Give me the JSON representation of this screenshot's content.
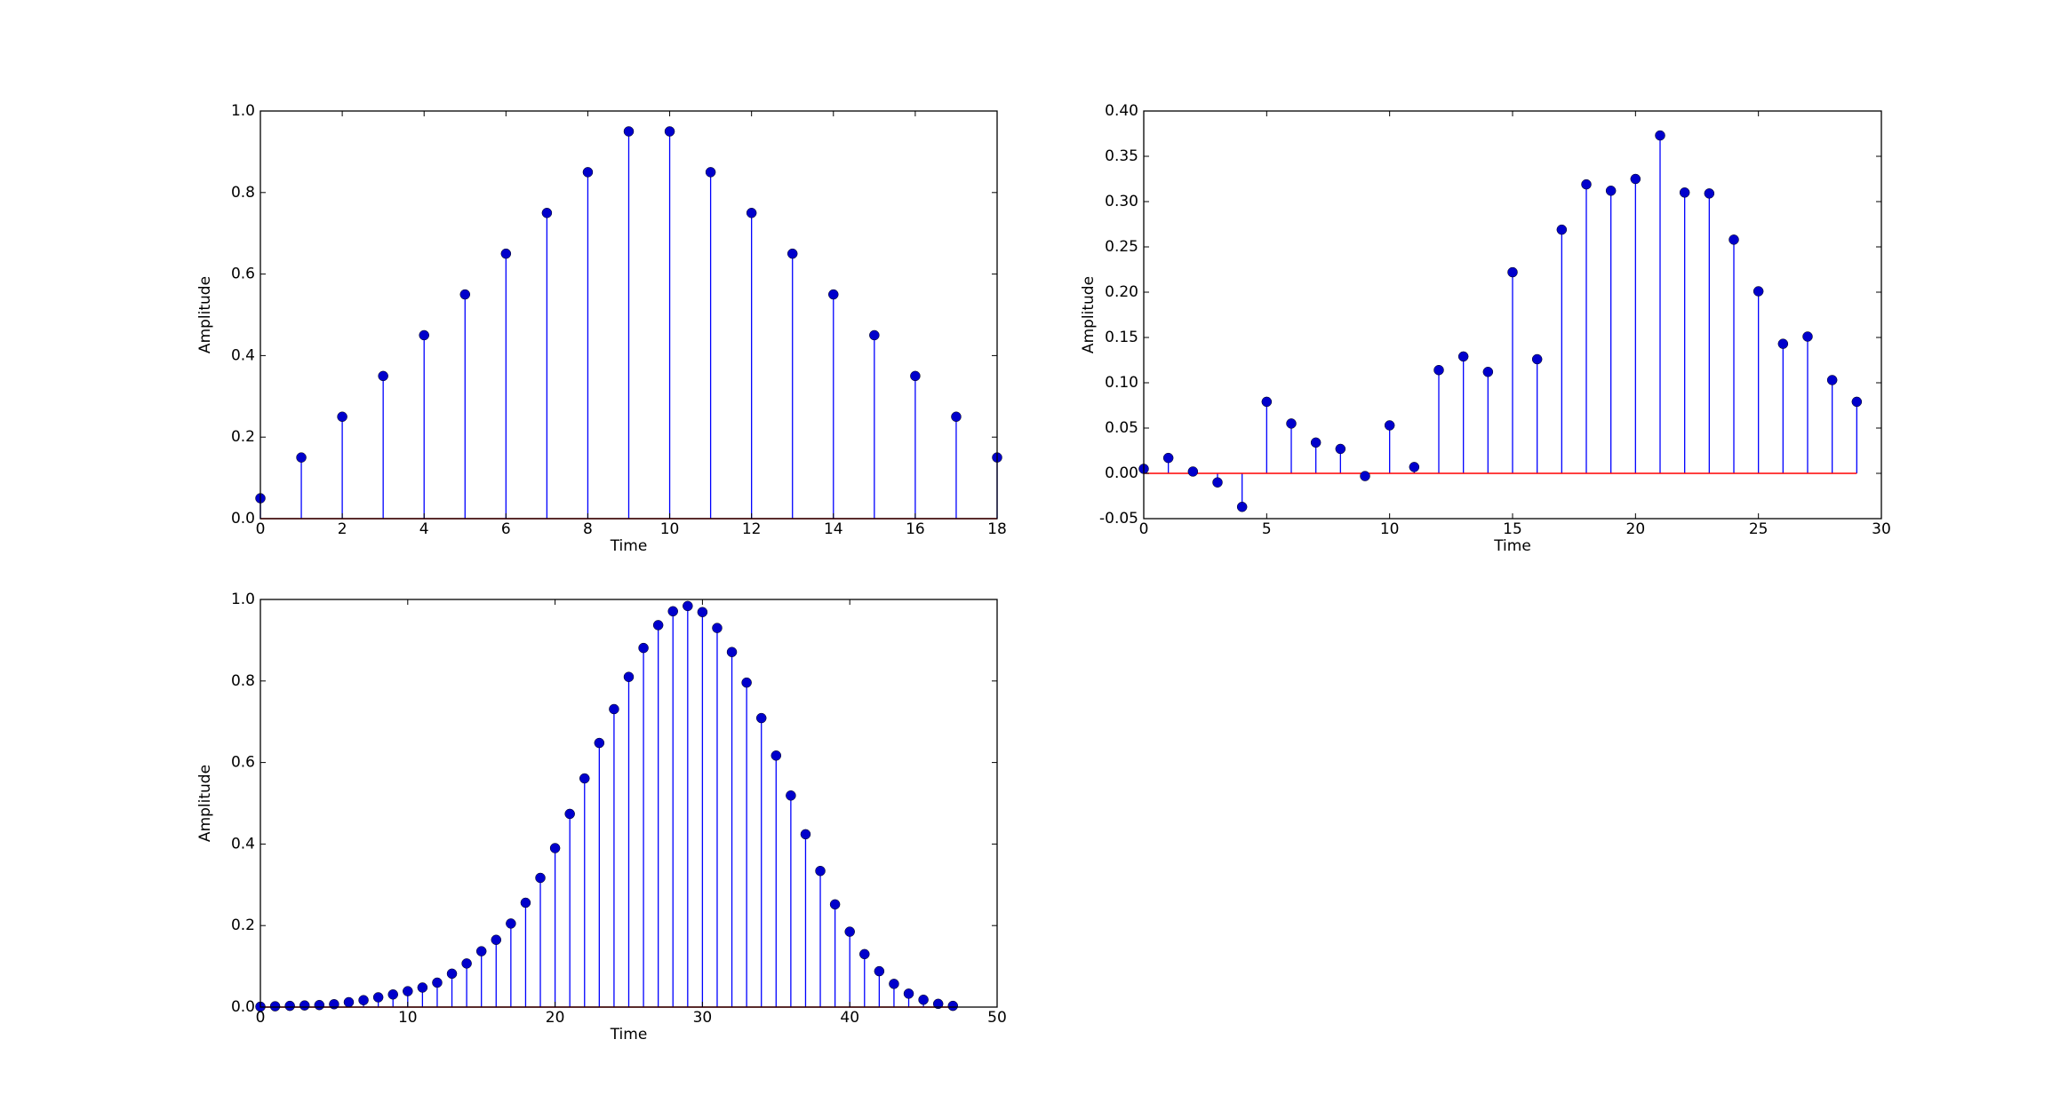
{
  "chart_data": [
    {
      "type": "stem",
      "xlabel": "Time",
      "ylabel": "Amplitude",
      "color": "#0000ff",
      "marker_color": "#0000cc",
      "baseline_color": "#ff0000",
      "x": [
        0,
        1,
        2,
        3,
        4,
        5,
        6,
        7,
        8,
        9,
        10,
        11,
        12,
        13,
        14,
        15,
        16,
        17,
        18
      ],
      "values": [
        0.05,
        0.15,
        0.25,
        0.35,
        0.45,
        0.55,
        0.65,
        0.75,
        0.85,
        0.95,
        0.95,
        0.85,
        0.75,
        0.65,
        0.55,
        0.45,
        0.35,
        0.25,
        0.15
      ],
      "xlim": [
        0,
        18
      ],
      "xticks": [
        0,
        2,
        4,
        6,
        8,
        10,
        12,
        14,
        16,
        18
      ],
      "ylim": [
        0,
        1
      ],
      "yticks": [
        {
          "value": 0,
          "label": "0.0"
        },
        0.2,
        0.4,
        0.6,
        0.8,
        {
          "value": 1,
          "label": "1.0"
        }
      ]
    },
    {
      "type": "stem",
      "xlabel": "Time",
      "ylabel": "Amplitude",
      "color": "#0000ff",
      "marker_color": "#0000cc",
      "baseline_color": "#ff0000",
      "x": [
        0,
        1,
        2,
        3,
        4,
        5,
        6,
        7,
        8,
        9,
        10,
        11,
        12,
        13,
        14,
        15,
        16,
        17,
        18,
        19,
        20,
        21,
        22,
        23,
        24,
        25,
        26,
        27,
        28,
        29
      ],
      "values": [
        0.005,
        0.017,
        0.002,
        -0.01,
        -0.037,
        0.079,
        0.055,
        0.034,
        0.027,
        -0.003,
        0.053,
        0.007,
        0.114,
        0.129,
        0.112,
        0.222,
        0.126,
        0.269,
        0.319,
        0.312,
        0.325,
        0.373,
        0.31,
        0.309,
        0.258,
        0.201,
        0.143,
        0.151,
        0.103,
        0.079
      ],
      "xlim": [
        0,
        30
      ],
      "xticks": [
        0,
        5,
        10,
        15,
        20,
        25,
        30
      ],
      "ylim": [
        -0.05,
        0.4
      ],
      "yticks": [
        -0.05,
        {
          "value": 0,
          "label": "0.00"
        },
        0.05,
        {
          "value": 0.1,
          "label": "0.10"
        },
        0.15,
        {
          "value": 0.2,
          "label": "0.20"
        },
        0.25,
        {
          "value": 0.3,
          "label": "0.30"
        },
        0.35,
        {
          "value": 0.4,
          "label": "0.40"
        }
      ]
    },
    {
      "type": "stem",
      "xlabel": "Time",
      "ylabel": "Amplitude",
      "color": "#0000ff",
      "marker_color": "#0000cc",
      "baseline_color": "#ff0000",
      "x": [
        0,
        1,
        2,
        3,
        4,
        5,
        6,
        7,
        8,
        9,
        10,
        11,
        12,
        13,
        14,
        15,
        16,
        17,
        18,
        19,
        20,
        21,
        22,
        23,
        24,
        25,
        26,
        27,
        28,
        29,
        30,
        31,
        32,
        33,
        34,
        35,
        36,
        37,
        38,
        39,
        40,
        41,
        42,
        43,
        44,
        45,
        46,
        47
      ],
      "values": [
        0.001,
        0.002,
        0.003,
        0.004,
        0.005,
        0.007,
        0.012,
        0.017,
        0.024,
        0.031,
        0.039,
        0.048,
        0.06,
        0.082,
        0.107,
        0.137,
        0.165,
        0.205,
        0.256,
        0.317,
        0.39,
        0.474,
        0.561,
        0.648,
        0.731,
        0.81,
        0.881,
        0.937,
        0.971,
        0.984,
        0.969,
        0.93,
        0.871,
        0.796,
        0.709,
        0.617,
        0.519,
        0.424,
        0.334,
        0.252,
        0.185,
        0.13,
        0.088,
        0.057,
        0.033,
        0.018,
        0.008,
        0.003
      ],
      "xlim": [
        0,
        50
      ],
      "xticks": [
        0,
        10,
        20,
        30,
        40,
        50
      ],
      "ylim": [
        0,
        1
      ],
      "yticks": [
        {
          "value": 0,
          "label": "0.0"
        },
        0.2,
        0.4,
        0.6,
        0.8,
        {
          "value": 1,
          "label": "1.0"
        }
      ]
    }
  ]
}
